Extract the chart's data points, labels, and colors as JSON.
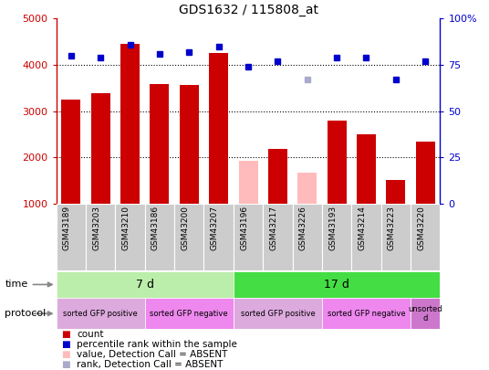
{
  "title": "GDS1632 / 115808_at",
  "samples": [
    "GSM43189",
    "GSM43203",
    "GSM43210",
    "GSM43186",
    "GSM43200",
    "GSM43207",
    "GSM43196",
    "GSM43217",
    "GSM43226",
    "GSM43193",
    "GSM43214",
    "GSM43223",
    "GSM43220"
  ],
  "count_values": [
    3250,
    3380,
    4450,
    3580,
    3560,
    4250,
    1920,
    2180,
    1670,
    2800,
    2490,
    1510,
    2340
  ],
  "count_absent": [
    false,
    false,
    false,
    false,
    false,
    false,
    true,
    false,
    true,
    false,
    false,
    false,
    false
  ],
  "percentile_values": [
    80,
    79,
    86,
    81,
    82,
    85,
    74,
    77,
    67,
    79,
    79,
    67,
    77
  ],
  "percentile_absent": [
    false,
    false,
    false,
    false,
    false,
    false,
    false,
    false,
    true,
    false,
    false,
    false,
    false
  ],
  "ylim_left": [
    1000,
    5000
  ],
  "ylim_right": [
    0,
    100
  ],
  "yticks_left": [
    1000,
    2000,
    3000,
    4000,
    5000
  ],
  "yticks_right": [
    0,
    25,
    50,
    75,
    100
  ],
  "ytick_labels_right": [
    "0",
    "25",
    "50",
    "75",
    "100%"
  ],
  "color_bar_present": "#cc0000",
  "color_bar_absent": "#ffbbbb",
  "color_dot_present": "#0000cc",
  "color_dot_absent": "#aaaacc",
  "time_groups": [
    {
      "label": "7 d",
      "start": 0,
      "end": 5,
      "color": "#aaeea a"
    },
    {
      "label": "17 d",
      "start": 6,
      "end": 12,
      "color": "#44dd44"
    }
  ],
  "time_colors": [
    "#bbeeaa",
    "#44dd44"
  ],
  "protocol_groups": [
    {
      "label": "sorted GFP positive",
      "start": 0,
      "end": 2,
      "color": "#ddaadd"
    },
    {
      "label": "sorted GFP negative",
      "start": 3,
      "end": 5,
      "color": "#ee88ee"
    },
    {
      "label": "sorted GFP positive",
      "start": 6,
      "end": 8,
      "color": "#ddaadd"
    },
    {
      "label": "sorted GFP negative",
      "start": 9,
      "end": 11,
      "color": "#ee88ee"
    },
    {
      "label": "unsorted\nd",
      "start": 12,
      "end": 12,
      "color": "#cc77cc"
    }
  ],
  "bg_color": "#ffffff",
  "ylabel_left_color": "#cc0000",
  "ylabel_right_color": "#0000cc",
  "legend_items": [
    {
      "color": "#cc0000",
      "label": "count"
    },
    {
      "color": "#0000cc",
      "label": "percentile rank within the sample"
    },
    {
      "color": "#ffbbbb",
      "label": "value, Detection Call = ABSENT"
    },
    {
      "color": "#aaaacc",
      "label": "rank, Detection Call = ABSENT"
    }
  ]
}
